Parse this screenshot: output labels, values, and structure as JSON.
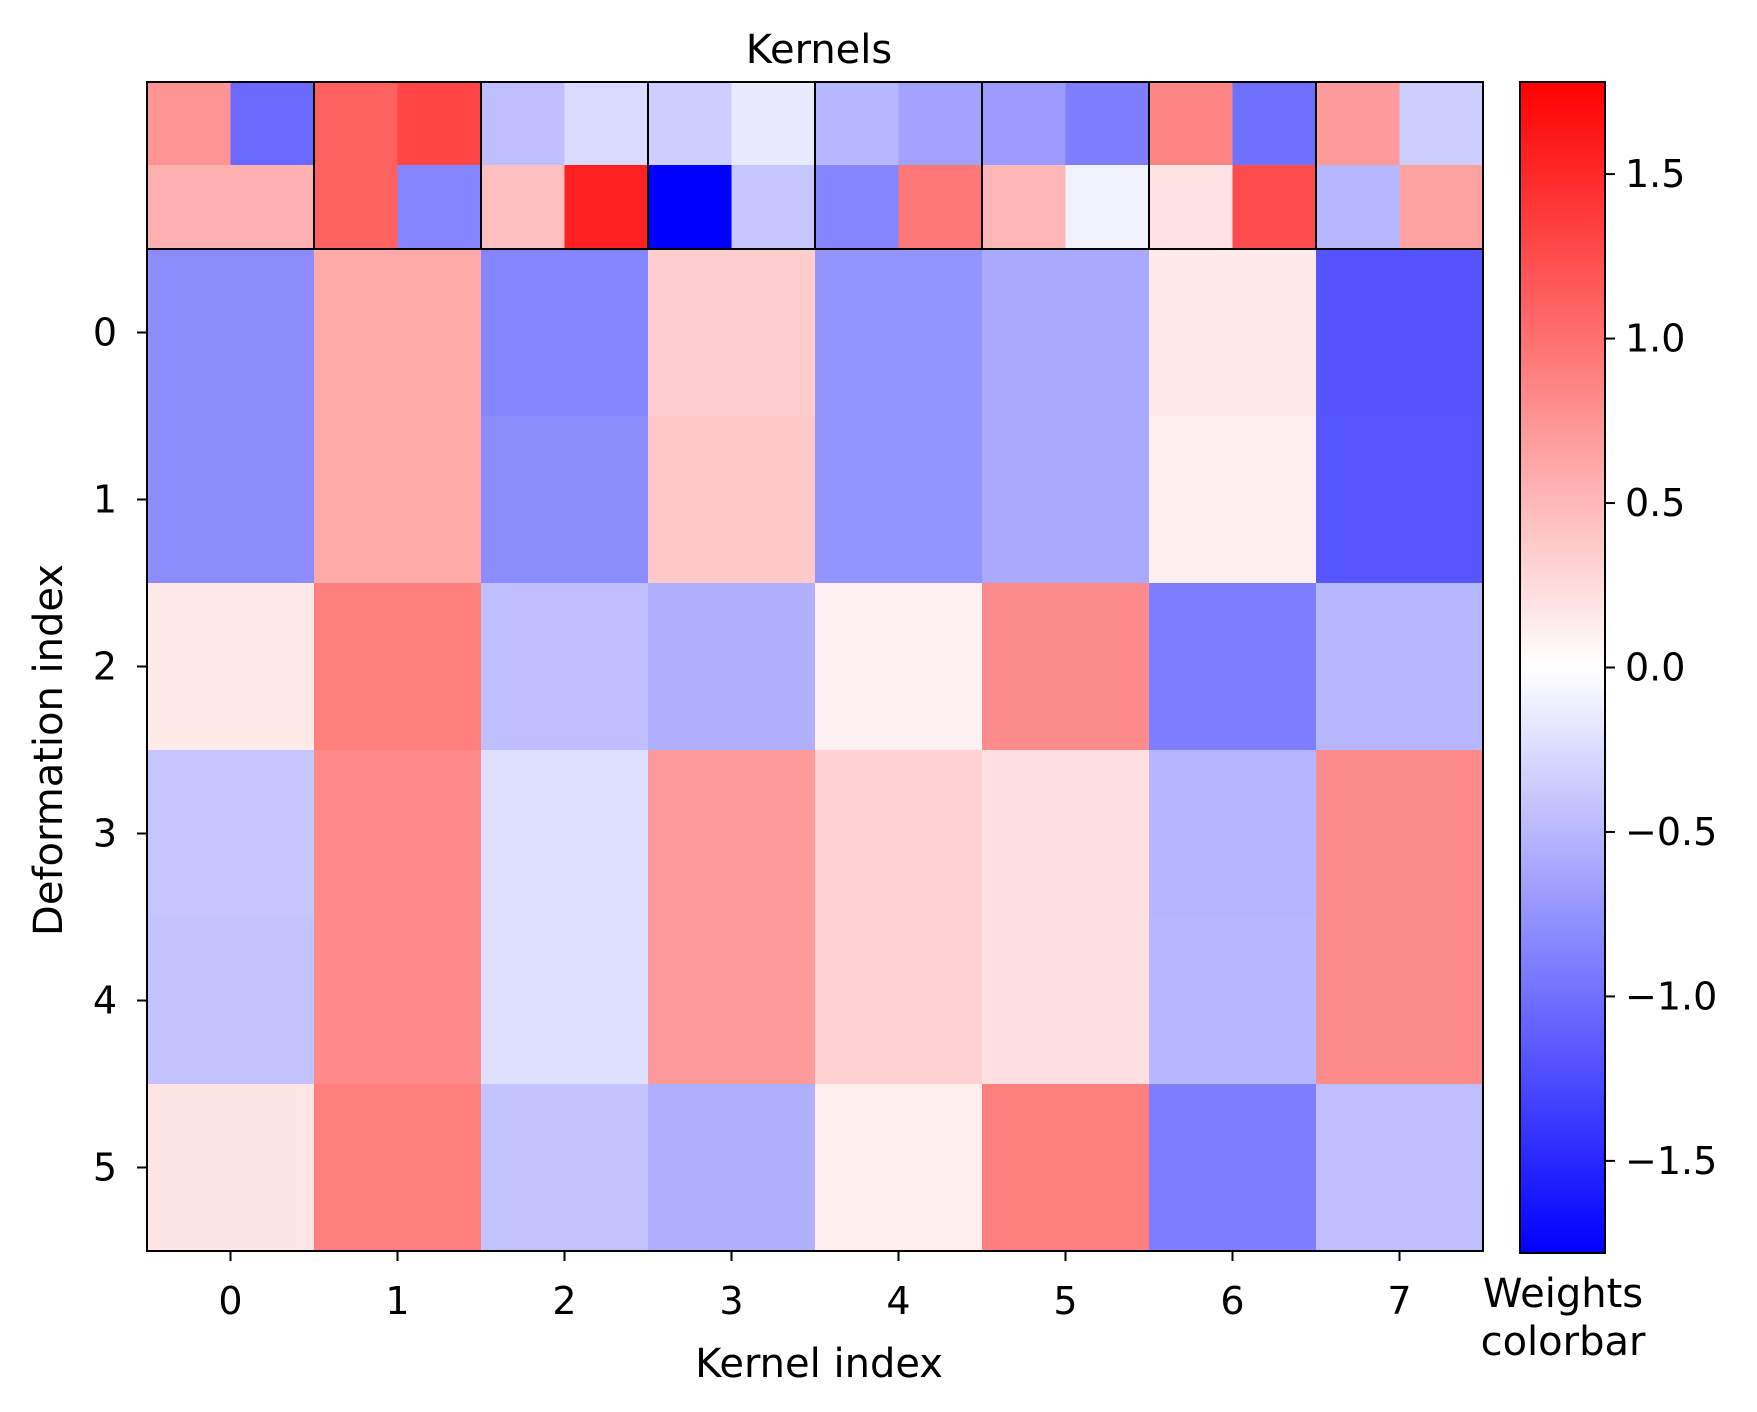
{
  "chart_data": {
    "type": "heatmap",
    "title": "Kernels",
    "xlabel": "Kernel index",
    "ylabel": "Deformation index",
    "x_ticks": [
      "0",
      "1",
      "2",
      "3",
      "4",
      "5",
      "6",
      "7"
    ],
    "y_ticks": [
      "0",
      "1",
      "2",
      "3",
      "4",
      "5"
    ],
    "colormap": "bwr",
    "vmin": -1.78,
    "vmax": 1.78,
    "colorbar": {
      "label_line1": "Weights",
      "label_line2": "colorbar",
      "ticks": [
        1.5,
        1.0,
        0.5,
        0.0,
        -0.5,
        -1.0,
        -1.5
      ],
      "tick_labels": [
        "1.5",
        "1.0",
        "0.5",
        "0.0",
        "−0.5",
        "−1.0",
        "−1.5"
      ]
    },
    "kernels": [
      [
        [
          0.75,
          -1.05
        ],
        [
          0.55,
          0.55
        ]
      ],
      [
        [
          1.1,
          1.3
        ],
        [
          1.1,
          -0.85
        ]
      ],
      [
        [
          -0.45,
          -0.25
        ],
        [
          0.45,
          1.55
        ]
      ],
      [
        [
          -0.35,
          -0.15
        ],
        [
          -1.78,
          -0.4
        ]
      ],
      [
        [
          -0.5,
          -0.65
        ],
        [
          -0.85,
          0.95
        ]
      ],
      [
        [
          -0.7,
          -0.9
        ],
        [
          0.5,
          -0.1
        ]
      ],
      [
        [
          0.85,
          -1.0
        ],
        [
          0.2,
          1.25
        ]
      ],
      [
        [
          0.7,
          -0.35
        ],
        [
          -0.5,
          0.65
        ]
      ]
    ],
    "weights": [
      [
        -0.8,
        0.6,
        -0.85,
        0.35,
        -0.75,
        -0.6,
        0.15,
        -1.2
      ],
      [
        -0.8,
        0.6,
        -0.8,
        0.38,
        -0.75,
        -0.6,
        0.12,
        -1.18
      ],
      [
        0.15,
        0.9,
        -0.45,
        -0.55,
        0.1,
        0.8,
        -0.9,
        -0.5
      ],
      [
        -0.4,
        0.82,
        -0.22,
        0.7,
        0.32,
        0.22,
        -0.52,
        0.8
      ],
      [
        -0.42,
        0.82,
        -0.22,
        0.7,
        0.32,
        0.22,
        -0.5,
        0.8
      ],
      [
        0.18,
        0.9,
        -0.42,
        -0.55,
        0.12,
        0.9,
        -0.9,
        -0.45
      ]
    ]
  }
}
